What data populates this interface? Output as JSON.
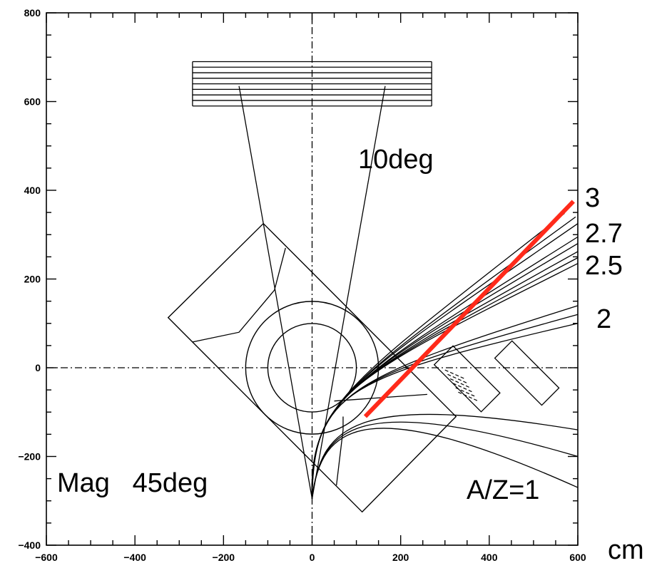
{
  "chart_data": {
    "type": "diagram",
    "units": "cm",
    "xlim": [
      -600,
      600
    ],
    "ylim": [
      -400,
      800
    ],
    "x_ticks": [
      -600,
      -400,
      -200,
      0,
      200,
      400,
      600
    ],
    "y_ticks": [
      -400,
      -200,
      0,
      200,
      400,
      600,
      800
    ],
    "x_tick_labels": [
      "−600",
      "−400",
      "−200",
      "0",
      "200",
      "400",
      "600"
    ],
    "y_tick_labels": [
      "−400",
      "−200",
      "0",
      "200",
      "400",
      "600",
      "800"
    ],
    "annotations": {
      "deg10": "10deg",
      "mag": "Mag   45deg",
      "az1": "A/Z=1",
      "r3": "3",
      "r27": "2.7",
      "r25": "2.5",
      "r2": "2"
    },
    "unit_label": "cm",
    "colors": {
      "line": "#000000",
      "highlight": "#ff2a1a"
    },
    "detector_stack": {
      "x": [
        -270,
        270
      ],
      "y": [
        590,
        690
      ],
      "layers": 8
    },
    "magnet_outline": [
      [
        -325,
        113
      ],
      [
        -110,
        325
      ],
      [
        325,
        -110
      ],
      [
        113,
        -325
      ]
    ],
    "pole_circle": {
      "cx": 0,
      "cy": 0,
      "r_outer": 150,
      "r_inner": 100
    },
    "cone": {
      "apex": [
        0,
        -295
      ],
      "top_left": [
        -165,
        635
      ],
      "top_right": [
        165,
        635
      ]
    },
    "red_line": [
      [
        120,
        -110
      ],
      [
        590,
        375
      ]
    ],
    "trajectories": [
      {
        "end": [
          570,
          348
        ]
      },
      {
        "end": [
          595,
          340
        ]
      },
      {
        "end": [
          600,
          325
        ]
      },
      {
        "end": [
          600,
          295
        ]
      },
      {
        "end": [
          600,
          280
        ]
      },
      {
        "end": [
          600,
          262
        ]
      },
      {
        "end": [
          600,
          248
        ]
      },
      {
        "end": [
          600,
          235
        ]
      },
      {
        "end": [
          600,
          140
        ]
      },
      {
        "end": [
          600,
          120
        ]
      },
      {
        "end": [
          600,
          100
        ]
      }
    ],
    "low_trajectories": [
      {
        "end": [
          600,
          -140
        ]
      },
      {
        "end": [
          600,
          -200
        ]
      },
      {
        "end": [
          600,
          -270
        ]
      }
    ]
  }
}
